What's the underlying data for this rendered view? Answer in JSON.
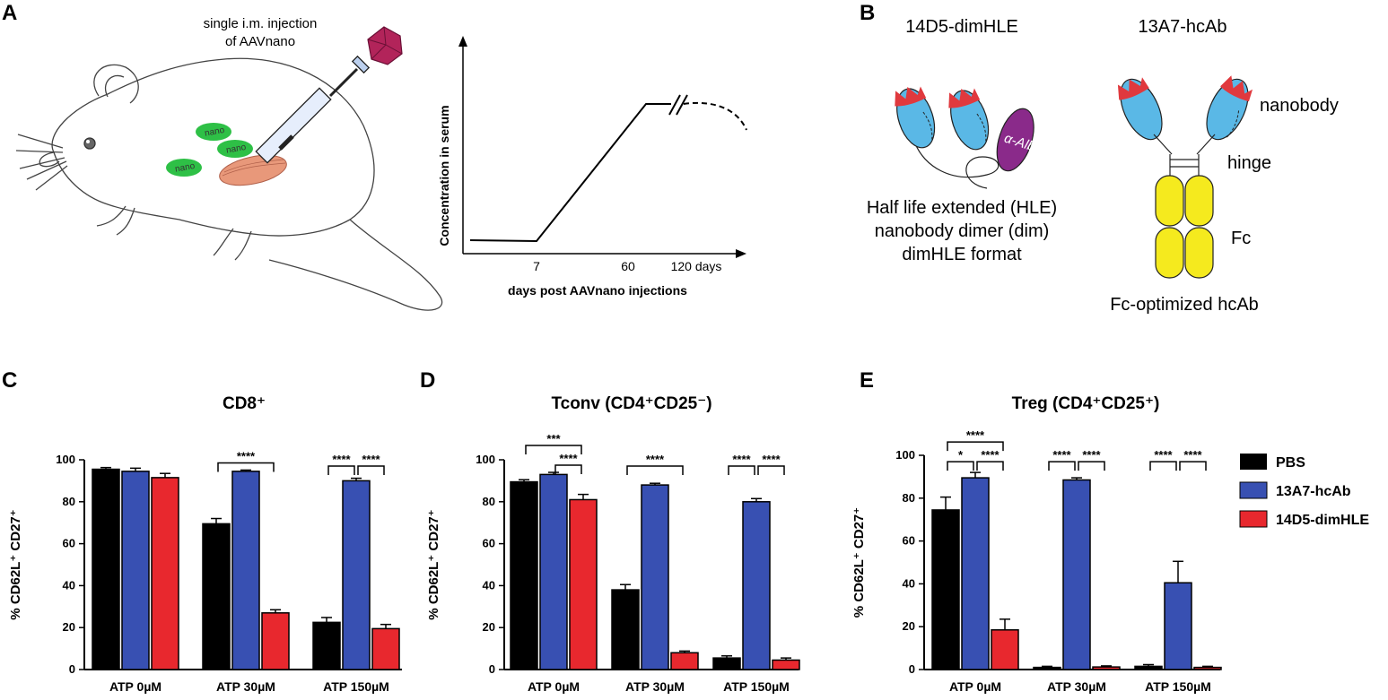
{
  "colors": {
    "PBS": "#000000",
    "13A7-hcAb": "#3850b2",
    "14D5-dimHLE": "#e8282e",
    "nanobody_blue": "#5ab8e6",
    "cdr_red": "#e0393e",
    "alb_purple": "#8a2a8a",
    "fc_yellow": "#f5ea1e",
    "muscle": "#e8987a",
    "nano_green": "#2ec046",
    "virus": "#b2245a"
  },
  "panel_a": {
    "letter": "A",
    "injection_line1": "single i.m. injection",
    "injection_line2": "of AAVnano",
    "nano_labels": [
      "nano",
      "nano",
      "nano"
    ],
    "icons": [
      "mouse-icon",
      "syringe-icon",
      "aav-virus-icon",
      "muscle-icon"
    ],
    "pk_plot": {
      "ylabel": "Concentration in serum",
      "xlabel": "days post AAVnano injections",
      "ticks": [
        "7",
        "60",
        "120 days"
      ]
    }
  },
  "panel_b": {
    "letter": "B",
    "format1_title": "14D5-dimHLE",
    "format2_title": "13A7-hcAb",
    "alb_label": "α-Alb",
    "format1_desc": [
      "Half life extended (HLE)",
      "nanobody dimer (dim)",
      "dimHLE format"
    ],
    "nanobody_label": "nanobody",
    "hinge_label": "hinge",
    "fc_label": "Fc",
    "format2_desc": "Fc-optimized hcAb"
  },
  "legend": [
    "PBS",
    "13A7-hcAb",
    "14D5-dimHLE"
  ],
  "chart_data": [
    {
      "type": "bar",
      "panel": "C",
      "title": "CD8⁺",
      "ylabel": "% CD62L⁺ CD27⁺",
      "xlabel": "",
      "ylim": [
        0,
        100
      ],
      "yticks": [
        "0",
        "20",
        "40",
        "60",
        "80",
        "100"
      ],
      "categories": [
        "ATP 0µM",
        "ATP 30µM",
        "ATP 150µM"
      ],
      "series": [
        {
          "name": "PBS",
          "values": [
            95.5,
            69.5,
            22.5
          ],
          "errors": [
            0.8,
            2.5,
            2.3
          ]
        },
        {
          "name": "13A7-hcAb",
          "values": [
            94.5,
            94.5,
            90
          ],
          "errors": [
            1.5,
            0.6,
            1.2
          ]
        },
        {
          "name": "14D5-dimHLE",
          "values": [
            91.5,
            27,
            19.5
          ],
          "errors": [
            2.0,
            1.5,
            2.0
          ]
        }
      ],
      "significance": [
        {
          "label": "****",
          "group": 1,
          "from": 0,
          "to": 2,
          "level": 0
        },
        {
          "label": "****",
          "group": 2,
          "from": 0,
          "to": 1,
          "level": 0
        },
        {
          "label": "****",
          "group": 2,
          "from": 1,
          "to": 2,
          "level": 0
        }
      ]
    },
    {
      "type": "bar",
      "panel": "D",
      "title": "Tconv (CD4⁺CD25⁻)",
      "ylabel": "% CD62L⁺ CD27⁺",
      "xlabel": "",
      "ylim": [
        0,
        100
      ],
      "yticks": [
        "0",
        "20",
        "40",
        "60",
        "80",
        "100"
      ],
      "categories": [
        "ATP 0µM",
        "ATP 30µM",
        "ATP 150µM"
      ],
      "series": [
        {
          "name": "PBS",
          "values": [
            89.5,
            38,
            5.5
          ],
          "errors": [
            1.0,
            2.5,
            1.0
          ]
        },
        {
          "name": "13A7-hcAb",
          "values": [
            93,
            88,
            80
          ],
          "errors": [
            1.0,
            0.8,
            1.5
          ]
        },
        {
          "name": "14D5-dimHLE",
          "values": [
            81,
            8,
            4.5
          ],
          "errors": [
            2.5,
            0.8,
            1.0
          ]
        }
      ],
      "significance": [
        {
          "label": "***",
          "group": 0,
          "from": 0,
          "to": 2,
          "level": 1
        },
        {
          "label": "****",
          "group": 0,
          "from": 1,
          "to": 2,
          "level": 0
        },
        {
          "label": "****",
          "group": 1,
          "from": 0,
          "to": 2,
          "level": 0
        },
        {
          "label": "****",
          "group": 2,
          "from": 0,
          "to": 1,
          "level": 0
        },
        {
          "label": "****",
          "group": 2,
          "from": 1,
          "to": 2,
          "level": 0
        }
      ]
    },
    {
      "type": "bar",
      "panel": "E",
      "title": "Treg (CD4⁺CD25⁺)",
      "ylabel": "% CD62L⁺ CD27⁺",
      "xlabel": "",
      "ylim": [
        0,
        100
      ],
      "yticks": [
        "0",
        "20",
        "40",
        "60",
        "80",
        "100"
      ],
      "categories": [
        "ATP 0µM",
        "ATP 30µM",
        "ATP 150µM"
      ],
      "series": [
        {
          "name": "PBS",
          "values": [
            74.5,
            1,
            1.5
          ],
          "errors": [
            6.0,
            0.5,
            0.8
          ]
        },
        {
          "name": "13A7-hcAb",
          "values": [
            89.5,
            88.5,
            40.5
          ],
          "errors": [
            2.5,
            1.0,
            10.0
          ]
        },
        {
          "name": "14D5-dimHLE",
          "values": [
            18.5,
            1.2,
            1.0
          ],
          "errors": [
            5.0,
            0.5,
            0.5
          ]
        }
      ],
      "significance": [
        {
          "label": "****",
          "group": 0,
          "from": 0,
          "to": 2,
          "level": 1
        },
        {
          "label": "*",
          "group": 0,
          "from": 0,
          "to": 1,
          "level": 0
        },
        {
          "label": "****",
          "group": 0,
          "from": 1,
          "to": 2,
          "level": 0
        },
        {
          "label": "****",
          "group": 1,
          "from": 0,
          "to": 1,
          "level": 0
        },
        {
          "label": "****",
          "group": 1,
          "from": 1,
          "to": 2,
          "level": 0
        },
        {
          "label": "****",
          "group": 2,
          "from": 0,
          "to": 1,
          "level": 0
        },
        {
          "label": "****",
          "group": 2,
          "from": 1,
          "to": 2,
          "level": 0
        }
      ]
    }
  ]
}
